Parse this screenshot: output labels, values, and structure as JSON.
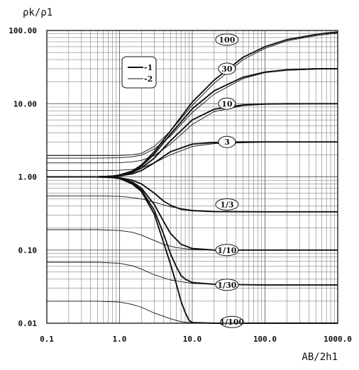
{
  "chart_data": {
    "type": "line",
    "scale": {
      "x": "log",
      "y": "log"
    },
    "xlim": [
      0.1,
      1000
    ],
    "ylim": [
      0.01,
      100
    ],
    "grid": true,
    "ylabel": "ρk/ρ1",
    "xlabel": "AB/2h1",
    "x_tick_labels": [
      "0.1",
      "1.0",
      "10.0",
      "100.0",
      "1000.0"
    ],
    "y_tick_labels": [
      "100.00",
      "10.00",
      "1.00",
      "0.10",
      "0.01"
    ],
    "legend": {
      "placement": "top-left",
      "entries": [
        {
          "key": "1",
          "label": "-1",
          "style": "thick"
        },
        {
          "key": "2",
          "label": "-2",
          "style": "thin"
        }
      ]
    },
    "curve_labels": [
      "100",
      "30",
      "10",
      "3",
      "1/3",
      "1/10",
      "1/30",
      "1/100"
    ],
    "series": [
      {
        "key": "1",
        "x": [
          0.1,
          0.5,
          0.8,
          1,
          1.5,
          2,
          3,
          5,
          10,
          20,
          50,
          100,
          200,
          500,
          700,
          1000
        ],
        "y": [
          1,
          1,
          1.02,
          1.06,
          1.2,
          1.45,
          2.2,
          4.2,
          10.5,
          21,
          43,
          60,
          75,
          88,
          92,
          95
        ]
      },
      {
        "key": "1",
        "x": [
          0.1,
          0.5,
          0.8,
          1,
          1.5,
          2,
          3,
          5,
          10,
          20,
          50,
          100,
          200,
          500,
          1000
        ],
        "y": [
          1,
          1,
          1.02,
          1.06,
          1.18,
          1.4,
          2.05,
          3.8,
          8.5,
          15,
          23,
          27,
          29,
          30,
          30
        ]
      },
      {
        "key": "1",
        "x": [
          0.1,
          0.5,
          0.8,
          1,
          1.5,
          2,
          3,
          5,
          10,
          20,
          50,
          100,
          200,
          500,
          1000
        ],
        "y": [
          1,
          1,
          1.02,
          1.05,
          1.15,
          1.32,
          1.8,
          3.1,
          6,
          8.4,
          9.6,
          9.9,
          10,
          10,
          10
        ]
      },
      {
        "key": "1",
        "x": [
          0.1,
          0.5,
          0.8,
          1,
          1.5,
          2,
          3,
          5,
          10,
          20,
          50,
          100,
          1000
        ],
        "y": [
          1,
          1,
          1.01,
          1.03,
          1.1,
          1.22,
          1.55,
          2.2,
          2.8,
          2.95,
          3,
          3,
          3
        ]
      },
      {
        "key": "1",
        "x": [
          0.1,
          0.5,
          0.8,
          1,
          1.5,
          2,
          3,
          4,
          5,
          7,
          10,
          20,
          100,
          1000
        ],
        "y": [
          1,
          1,
          0.99,
          0.97,
          0.9,
          0.8,
          0.6,
          0.47,
          0.41,
          0.36,
          0.345,
          0.335,
          0.333,
          0.333
        ]
      },
      {
        "key": "1",
        "x": [
          0.1,
          0.5,
          0.8,
          1,
          1.5,
          2,
          3,
          4,
          5,
          7,
          10,
          20,
          100,
          1000
        ],
        "y": [
          1,
          1,
          0.98,
          0.96,
          0.85,
          0.7,
          0.42,
          0.25,
          0.17,
          0.12,
          0.105,
          0.1,
          0.1,
          0.1
        ]
      },
      {
        "key": "1",
        "x": [
          0.1,
          0.5,
          0.8,
          1,
          1.5,
          2,
          3,
          4,
          5,
          6,
          7,
          8,
          10,
          20,
          100,
          1000
        ],
        "y": [
          1,
          1,
          0.98,
          0.95,
          0.82,
          0.66,
          0.35,
          0.17,
          0.09,
          0.06,
          0.045,
          0.04,
          0.036,
          0.034,
          0.0333,
          0.0333
        ]
      },
      {
        "key": "1",
        "x": [
          0.1,
          0.5,
          0.8,
          1,
          1.5,
          2,
          3,
          4,
          5,
          6,
          7,
          8,
          9,
          10,
          20,
          100,
          1000
        ],
        "y": [
          1,
          1,
          0.98,
          0.95,
          0.8,
          0.63,
          0.31,
          0.13,
          0.065,
          0.035,
          0.02,
          0.014,
          0.011,
          0.0102,
          0.01,
          0.01,
          0.01
        ]
      },
      {
        "key": "2",
        "x": [
          0.1,
          0.5,
          1,
          1.5,
          2,
          3,
          5,
          10,
          20,
          50,
          100,
          200,
          500,
          1000
        ],
        "y": [
          1.95,
          1.95,
          1.96,
          2.0,
          2.1,
          2.6,
          4.2,
          9.5,
          19,
          40,
          57,
          72,
          85,
          92
        ]
      },
      {
        "key": "2",
        "x": [
          0.1,
          0.5,
          1,
          1.5,
          2,
          3,
          5,
          10,
          20,
          50,
          100,
          200,
          500,
          1000
        ],
        "y": [
          1.8,
          1.8,
          1.82,
          1.88,
          1.98,
          2.4,
          3.6,
          7.6,
          13.5,
          22,
          26.5,
          28.5,
          29.5,
          30
        ]
      },
      {
        "key": "2",
        "x": [
          0.1,
          0.5,
          1,
          1.5,
          2,
          3,
          5,
          10,
          20,
          50,
          100,
          1000
        ],
        "y": [
          1.55,
          1.55,
          1.56,
          1.6,
          1.68,
          1.95,
          2.8,
          5.2,
          7.8,
          9.4,
          9.8,
          10
        ]
      },
      {
        "key": "2",
        "x": [
          0.1,
          0.5,
          1,
          1.5,
          2,
          3,
          5,
          10,
          20,
          100,
          1000
        ],
        "y": [
          1.22,
          1.22,
          1.23,
          1.26,
          1.32,
          1.55,
          2.0,
          2.6,
          2.85,
          2.98,
          3
        ]
      },
      {
        "key": "2",
        "x": [
          0.1,
          0.5,
          1,
          1.5,
          2,
          3,
          5,
          10,
          20,
          100,
          1000
        ],
        "y": [
          0.55,
          0.55,
          0.54,
          0.52,
          0.5,
          0.45,
          0.39,
          0.35,
          0.34,
          0.334,
          0.333
        ]
      },
      {
        "key": "2",
        "x": [
          0.1,
          0.5,
          1,
          1.5,
          2,
          3,
          4,
          6,
          10,
          20,
          100,
          1000
        ],
        "y": [
          0.19,
          0.19,
          0.185,
          0.175,
          0.16,
          0.135,
          0.12,
          0.108,
          0.102,
          0.1,
          0.1,
          0.1
        ]
      },
      {
        "key": "2",
        "x": [
          0.1,
          0.5,
          1,
          1.5,
          2,
          3,
          5,
          10,
          20,
          100,
          1000
        ],
        "y": [
          0.068,
          0.068,
          0.066,
          0.061,
          0.055,
          0.046,
          0.039,
          0.035,
          0.034,
          0.0333,
          0.0333
        ]
      },
      {
        "key": "2",
        "x": [
          0.1,
          0.5,
          1,
          1.5,
          2,
          3,
          5,
          7,
          10,
          20,
          100,
          1000
        ],
        "y": [
          0.02,
          0.02,
          0.0195,
          0.018,
          0.0165,
          0.0138,
          0.0115,
          0.0105,
          0.0101,
          0.01,
          0.01,
          0.01
        ]
      }
    ]
  },
  "colors": {
    "background": "#ffffff",
    "ink": "#111111",
    "grid": "#666666"
  }
}
